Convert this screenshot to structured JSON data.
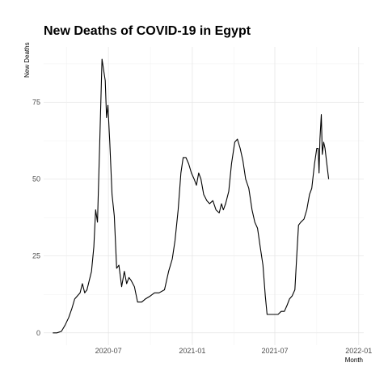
{
  "chart_data": {
    "type": "line",
    "title": "New Deaths of COVID-19 in Egypt",
    "xlabel": "Month",
    "ylabel": "New Deaths",
    "x_ticks": [
      "2020-07",
      "2021-01",
      "2021-07",
      "2022-01"
    ],
    "y_ticks": [
      0,
      25,
      50,
      75
    ],
    "xlim": [
      "2020-02-10",
      "2022-01-12"
    ],
    "ylim": [
      -4,
      93
    ],
    "grid": true,
    "legend": "none",
    "series": [
      {
        "color": "#000000",
        "points": [
          [
            "2020-03-01",
            0
          ],
          [
            "2020-03-10",
            0
          ],
          [
            "2020-03-20",
            0.5
          ],
          [
            "2020-03-28",
            2.5
          ],
          [
            "2020-04-05",
            5
          ],
          [
            "2020-04-12",
            8
          ],
          [
            "2020-04-18",
            11
          ],
          [
            "2020-04-24",
            12
          ],
          [
            "2020-04-30",
            13
          ],
          [
            "2020-05-05",
            16
          ],
          [
            "2020-05-10",
            13
          ],
          [
            "2020-05-15",
            14
          ],
          [
            "2020-05-20",
            17
          ],
          [
            "2020-05-25",
            20
          ],
          [
            "2020-05-30",
            28
          ],
          [
            "2020-06-03",
            40
          ],
          [
            "2020-06-07",
            36
          ],
          [
            "2020-06-12",
            62
          ],
          [
            "2020-06-17",
            89
          ],
          [
            "2020-06-20",
            86
          ],
          [
            "2020-06-24",
            82
          ],
          [
            "2020-06-27",
            70
          ],
          [
            "2020-06-30",
            74
          ],
          [
            "2020-07-04",
            62
          ],
          [
            "2020-07-09",
            45
          ],
          [
            "2020-07-14",
            38
          ],
          [
            "2020-07-19",
            21
          ],
          [
            "2020-07-24",
            22
          ],
          [
            "2020-07-30",
            15
          ],
          [
            "2020-08-05",
            20
          ],
          [
            "2020-08-10",
            16
          ],
          [
            "2020-08-15",
            18
          ],
          [
            "2020-08-20",
            17
          ],
          [
            "2020-08-27",
            15
          ],
          [
            "2020-09-03",
            10
          ],
          [
            "2020-09-12",
            10
          ],
          [
            "2020-09-20",
            11
          ],
          [
            "2020-10-01",
            12
          ],
          [
            "2020-10-10",
            13
          ],
          [
            "2020-10-20",
            13
          ],
          [
            "2020-11-01",
            14
          ],
          [
            "2020-11-10",
            20
          ],
          [
            "2020-11-18",
            24
          ],
          [
            "2020-11-24",
            30
          ],
          [
            "2020-12-01",
            40
          ],
          [
            "2020-12-07",
            52
          ],
          [
            "2020-12-12",
            57
          ],
          [
            "2020-12-18",
            57
          ],
          [
            "2020-12-24",
            55
          ],
          [
            "2020-12-30",
            52
          ],
          [
            "2021-01-05",
            50
          ],
          [
            "2021-01-10",
            48
          ],
          [
            "2021-01-15",
            52
          ],
          [
            "2021-01-20",
            50
          ],
          [
            "2021-01-26",
            45
          ],
          [
            "2021-02-02",
            43
          ],
          [
            "2021-02-08",
            42
          ],
          [
            "2021-02-15",
            43
          ],
          [
            "2021-02-22",
            40
          ],
          [
            "2021-03-01",
            39
          ],
          [
            "2021-03-06",
            42
          ],
          [
            "2021-03-10",
            40
          ],
          [
            "2021-03-15",
            42
          ],
          [
            "2021-03-22",
            46
          ],
          [
            "2021-03-28",
            55
          ],
          [
            "2021-04-04",
            62
          ],
          [
            "2021-04-10",
            63
          ],
          [
            "2021-04-16",
            60
          ],
          [
            "2021-04-22",
            56
          ],
          [
            "2021-04-28",
            50
          ],
          [
            "2021-05-05",
            47
          ],
          [
            "2021-05-12",
            40
          ],
          [
            "2021-05-18",
            36
          ],
          [
            "2021-05-24",
            34
          ],
          [
            "2021-05-30",
            28
          ],
          [
            "2021-06-05",
            22
          ],
          [
            "2021-06-10",
            12
          ],
          [
            "2021-06-14",
            6
          ],
          [
            "2021-06-20",
            6
          ],
          [
            "2021-06-30",
            6
          ],
          [
            "2021-07-08",
            6
          ],
          [
            "2021-07-15",
            7
          ],
          [
            "2021-07-22",
            7
          ],
          [
            "2021-07-28",
            9
          ],
          [
            "2021-08-02",
            11
          ],
          [
            "2021-08-08",
            12
          ],
          [
            "2021-08-14",
            14
          ],
          [
            "2021-08-18",
            25
          ],
          [
            "2021-08-22",
            35
          ],
          [
            "2021-08-27",
            36
          ],
          [
            "2021-09-03",
            37
          ],
          [
            "2021-09-09",
            40
          ],
          [
            "2021-09-15",
            45
          ],
          [
            "2021-09-20",
            47
          ],
          [
            "2021-09-26",
            55
          ],
          [
            "2021-10-01",
            60
          ],
          [
            "2021-10-04",
            60
          ],
          [
            "2021-10-06",
            52
          ],
          [
            "2021-10-08",
            63
          ],
          [
            "2021-10-11",
            71
          ],
          [
            "2021-10-13",
            58
          ],
          [
            "2021-10-16",
            62
          ],
          [
            "2021-10-19",
            60
          ],
          [
            "2021-10-23",
            55
          ],
          [
            "2021-10-27",
            50
          ]
        ]
      }
    ]
  }
}
